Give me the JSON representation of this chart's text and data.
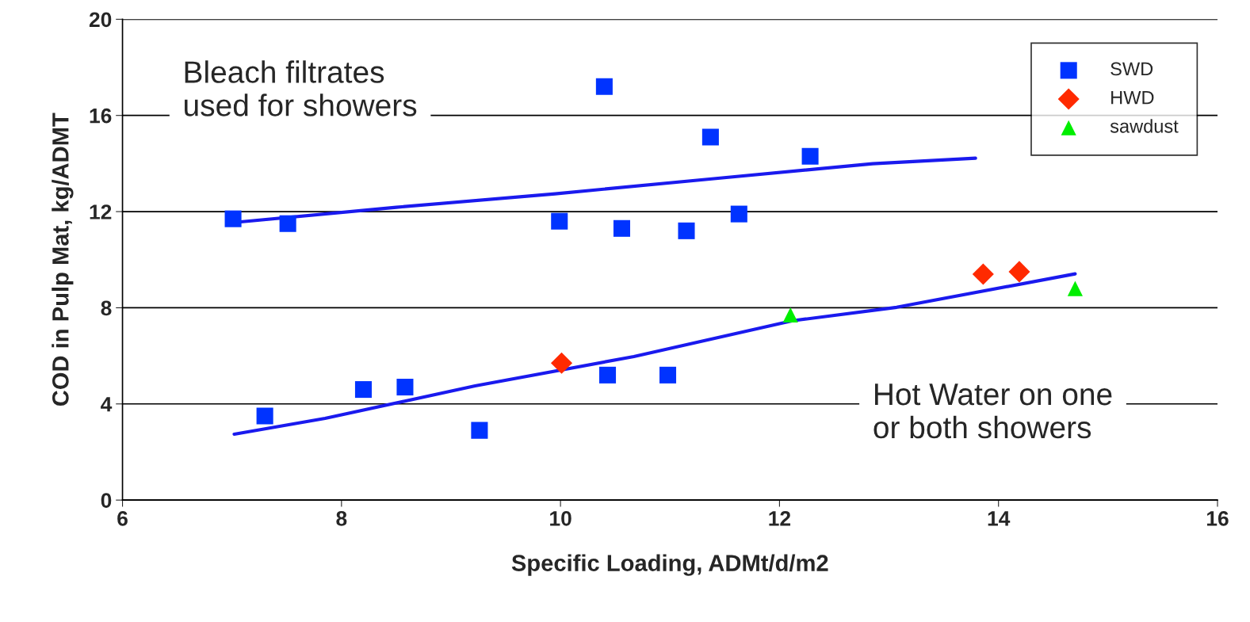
{
  "chart_data": {
    "type": "scatter",
    "xlabel": "Specific Loading, ADMt/d/m2",
    "ylabel": "COD in Pulp Mat, kg/ADMT",
    "xlim": [
      6,
      16
    ],
    "xticks": [
      6,
      8,
      10,
      12,
      14,
      16
    ],
    "ylim": [
      0,
      20
    ],
    "yticks": [
      0,
      4,
      8,
      12,
      16,
      20
    ],
    "grid": "y",
    "legend": "top right",
    "annotations": [
      "Bleach filtrates\nused for showers",
      "Hot Water on one\nor both showers"
    ],
    "series": [
      {
        "name": "SWD",
        "color": "#0033ff",
        "marker": "square",
        "x": [
          7.01,
          7.51,
          9.99,
          10.4,
          10.56,
          11.15,
          11.37,
          11.63,
          12.28,
          7.3,
          8.2,
          8.58,
          9.26,
          10.43,
          10.98
        ],
        "values": [
          11.7,
          11.5,
          11.6,
          17.2,
          11.3,
          11.2,
          15.1,
          11.9,
          14.3,
          3.5,
          4.6,
          4.7,
          2.9,
          5.2,
          5.2
        ]
      },
      {
        "name": "HWD",
        "color": "#ff2a00",
        "marker": "diamond",
        "x": [
          10.01,
          13.86,
          14.19
        ],
        "values": [
          5.7,
          9.4,
          9.5
        ]
      },
      {
        "name": "sawdust",
        "color": "#00ee00",
        "marker": "triangle",
        "x": [
          12.1,
          14.7
        ],
        "values": [
          7.7,
          8.8
        ]
      },
      {
        "type": "line",
        "color": "#1a1aee",
        "x": [
          7.02,
          8.5,
          9.95,
          11.4,
          12.85,
          13.79
        ],
        "values": [
          11.55,
          12.18,
          12.74,
          13.37,
          13.99,
          14.22
        ]
      },
      {
        "type": "line",
        "color": "#1a1aee",
        "x": [
          7.02,
          7.85,
          9.22,
          10.67,
          12.12,
          13.07,
          14.7
        ],
        "values": [
          2.74,
          3.4,
          4.75,
          5.97,
          7.46,
          8.02,
          9.41
        ]
      }
    ]
  }
}
